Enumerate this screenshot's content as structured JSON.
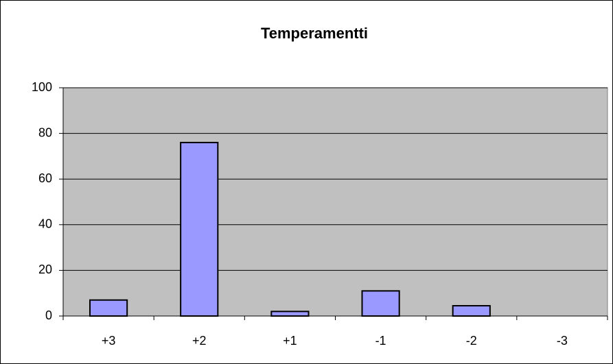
{
  "chart_data": {
    "type": "bar",
    "title": "Temperamentti",
    "categories": [
      "+3",
      "+2",
      "+1",
      "-1",
      "-2",
      "-3"
    ],
    "values": [
      7,
      76,
      2,
      11,
      4.5,
      0
    ],
    "color": "#9999ff",
    "ylim": [
      0,
      100
    ],
    "yticks": [
      0,
      20,
      40,
      60,
      80,
      100
    ],
    "grid": true
  }
}
